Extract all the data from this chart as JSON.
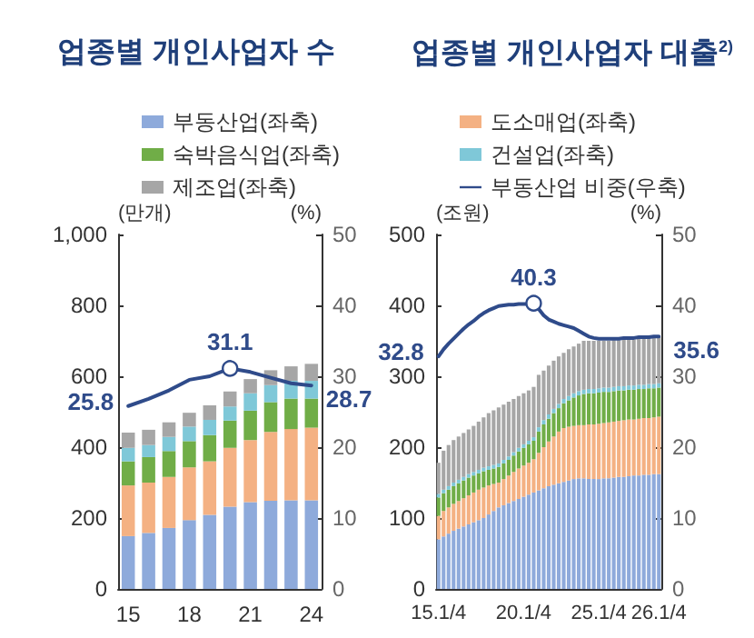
{
  "chart_data": [
    {
      "type": "bar",
      "title": "업종별 개인사업자 수",
      "ylabel": "(만개)",
      "y2label": "(%)",
      "stacked": true,
      "legend": "top",
      "grid": false,
      "categories": [
        "15",
        null,
        null,
        "18",
        null,
        null,
        "21",
        null,
        null,
        "24"
      ],
      "series": [
        {
          "name": "부동산업(좌축)",
          "color": "#8eaadb",
          "values": [
            149,
            158,
            172,
            194,
            209,
            232,
            245,
            249,
            250,
            250
          ]
        },
        {
          "name": "도소매업(좌축)",
          "color": "#f4b183",
          "values": [
            143,
            142,
            144,
            149,
            151,
            166,
            175,
            194,
            201,
            205
          ]
        },
        {
          "name": "숙박음식업(좌축)",
          "color": "#70ad47",
          "values": [
            68,
            72,
            73,
            74,
            74,
            77,
            83,
            84,
            86,
            82
          ]
        },
        {
          "name": "건설업(좌축)",
          "color": "#7fc8d8",
          "values": [
            38,
            34,
            40,
            41,
            43,
            40,
            49,
            48,
            50,
            50
          ]
        },
        {
          "name": "제조업(좌축)",
          "color": "#a6a6a6",
          "values": [
            43,
            43,
            41,
            39,
            41,
            42,
            40,
            42,
            41,
            48
          ]
        },
        {
          "name": "부동산업 비중(우축)",
          "type": "line",
          "axis": "y2",
          "color": "#2f4b8a",
          "values": [
            25.8,
            26.8,
            28.0,
            29.5,
            30.0,
            31.1,
            30.6,
            29.8,
            29.0,
            28.7
          ]
        }
      ],
      "ylim": [
        0,
        1000
      ],
      "yticks": [
        0,
        200,
        400,
        600,
        800,
        {
          "value": 1000,
          "label": "1,000"
        }
      ],
      "y2lim": [
        0,
        50
      ],
      "y2ticks": [
        0,
        10,
        20,
        30,
        40,
        50
      ],
      "annotations": [
        "25.8",
        "31.1",
        "28.7"
      ]
    },
    {
      "type": "bar",
      "title": "업종별 개인사업자 대출$^{2)}$",
      "ylabel": "(조원)",
      "y2label": "(%)",
      "stacked": true,
      "grid": false,
      "categories": [
        "15.1/4",
        null,
        null,
        null,
        null,
        null,
        null,
        null,
        null,
        null,
        null,
        null,
        null,
        null,
        null,
        null,
        null,
        "20.1/4",
        null,
        null,
        null,
        null,
        null,
        null,
        null,
        null,
        null,
        null,
        null,
        null,
        null,
        null,
        "25.1/4",
        null,
        null,
        null,
        null,
        null,
        null,
        null,
        null,
        null,
        null,
        null,
        "26.1/4"
      ],
      "series": [
        {
          "color": "#8eaadb",
          "values": [
            70,
            74,
            78,
            82,
            85,
            88,
            91,
            94,
            97,
            100,
            105,
            110,
            115,
            118,
            121,
            124,
            127,
            130,
            133,
            136,
            139,
            142,
            145,
            147,
            149,
            151,
            153,
            155,
            156,
            156,
            155,
            155,
            155,
            156,
            156,
            157,
            158,
            158,
            159,
            160,
            160,
            161,
            161,
            162,
            162
          ]
        },
        {
          "color": "#f4b183",
          "values": [
            33,
            36,
            37,
            38,
            39,
            40,
            41,
            42,
            43,
            43,
            41,
            38,
            35,
            37,
            39,
            41,
            43,
            44,
            45,
            47,
            53,
            58,
            63,
            68,
            73,
            76,
            76,
            75,
            75,
            75,
            77,
            77,
            78,
            78,
            79,
            79,
            79,
            80,
            80,
            79,
            80,
            80,
            80,
            80,
            81
          ]
        },
        {
          "color": "#70ad47",
          "values": [
            26,
            25,
            25,
            25,
            25,
            25,
            25,
            24,
            23,
            23,
            22,
            22,
            22,
            22,
            22,
            23,
            24,
            25,
            26,
            26,
            30,
            32,
            32,
            33,
            33,
            35,
            37,
            40,
            42,
            44,
            44,
            44,
            44,
            44,
            43,
            43,
            43,
            42,
            42,
            42,
            42,
            41,
            42,
            41,
            41
          ]
        },
        {
          "color": "#7fc8d8",
          "values": [
            5,
            5,
            5,
            5,
            5,
            5,
            5,
            5,
            5,
            5,
            5,
            5,
            5,
            5,
            5,
            5,
            5,
            5,
            5,
            5,
            6,
            6,
            6,
            6,
            6,
            6,
            6,
            6,
            6,
            6,
            6,
            6,
            6,
            6,
            6,
            6,
            6,
            6,
            6,
            6,
            6,
            6,
            6,
            6,
            6
          ]
        },
        {
          "color": "#a6a6a6",
          "values": [
            44,
            55,
            58,
            60,
            61,
            62,
            63,
            65,
            68,
            71,
            75,
            77,
            79,
            78,
            77,
            75,
            73,
            72,
            71,
            71,
            74,
            70,
            69,
            68,
            67,
            65,
            66,
            66,
            67,
            69,
            68,
            68,
            67,
            66,
            66,
            66,
            65,
            66,
            65,
            65,
            65,
            65,
            65,
            65,
            65
          ]
        },
        {
          "type": "line",
          "axis": "y2",
          "color": "#2f4b8a",
          "values": [
            32.8,
            33.8,
            34.6,
            35.3,
            36.0,
            36.7,
            37.3,
            37.8,
            38.4,
            38.9,
            39.3,
            39.6,
            39.9,
            40.0,
            40.1,
            40.1,
            40.2,
            40.2,
            40.2,
            40.3,
            39.5,
            38.6,
            38.0,
            37.7,
            37.4,
            37.2,
            37.0,
            36.8,
            36.4,
            36.0,
            35.6,
            35.4,
            35.3,
            35.3,
            35.3,
            35.3,
            35.3,
            35.4,
            35.4,
            35.4,
            35.5,
            35.5,
            35.5,
            35.6,
            35.6
          ]
        }
      ],
      "ylim": [
        0,
        500
      ],
      "yticks": [
        0,
        100,
        200,
        300,
        400,
        500
      ],
      "y2lim": [
        0,
        50
      ],
      "y2ticks": [
        0,
        10,
        20,
        30,
        40,
        50
      ],
      "annotations": [
        "32.8",
        "40.3",
        "35.6"
      ]
    }
  ]
}
